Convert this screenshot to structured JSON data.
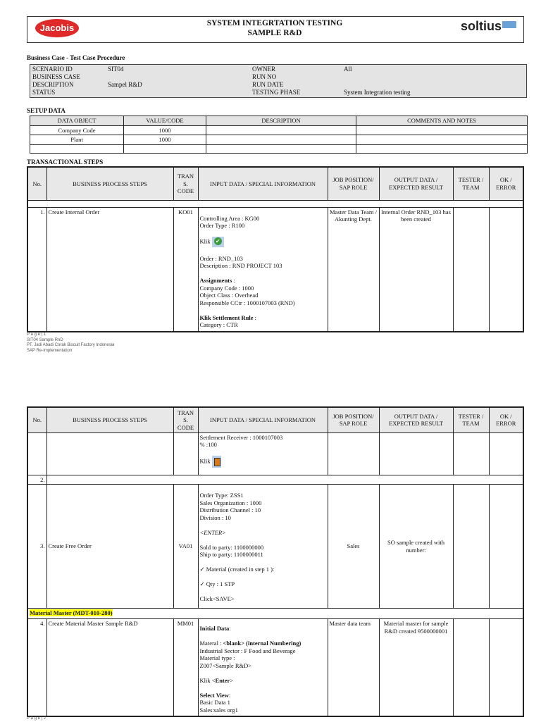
{
  "header": {
    "logo_left": "Jacobis",
    "title_line1": "SYSTEM INTEGRTATION TESTING",
    "title_line2": "SAMPLE R&D",
    "logo_right": "soltius"
  },
  "business_case": {
    "heading": "Business Case - Test Case Procedure",
    "scenario_id_label": "SCENARIO ID",
    "scenario_id": "SIT04",
    "business_case_label": "BUSINESS CASE",
    "business_case": "",
    "description_label": "DESCRIPTION",
    "description": "Sampel R&D",
    "status_label": "STATUS",
    "status": "",
    "owner_label": "OWNER",
    "owner": "All",
    "run_no_label": "RUN NO",
    "run_no": "",
    "run_date_label": "RUN DATE",
    "run_date": "",
    "testing_phase_label": "TESTING PHASE",
    "testing_phase": "System Integration testing"
  },
  "setup": {
    "heading": "SETUP DATA",
    "columns": [
      "DATA OBJECT",
      "VALUE/CODE",
      "DESCRIPTION",
      "COMMENTS AND NOTES"
    ],
    "rows": [
      [
        "Company Code",
        "1000",
        "",
        ""
      ],
      [
        "Plant",
        "1000",
        "",
        ""
      ],
      [
        "",
        "",
        "",
        ""
      ]
    ]
  },
  "steps": {
    "heading": "TRANSACTIONAL STEPS",
    "columns": [
      "No.",
      "BUSINESS PROCESS STEPS",
      "TRAN S. CODE",
      "INPUT DATA / SPECIAL INFORMATION",
      "JOB POSITION/ SAP ROLE",
      "OUTPUT DATA / EXPECTED RESULT",
      "TESTER / TEAM",
      "OK / ERROR"
    ],
    "step1": {
      "no": "1.",
      "name": "Create Internal Order",
      "code": "KO01",
      "job": "Master Data Team / Akunting Dept.",
      "output": "Internal Order RND_103 has been created",
      "input": {
        "l1": "Controlling Area : KG00",
        "l2": "Order Type : R100",
        "klik": "Klik",
        "l3": "Order : RND_103",
        "l4": "Description : RND PROJECT 103",
        "assign": "Assignments",
        "assign_colon": " :",
        "l5": "Company Code : 1000",
        "l6": "Object Class : Overhead",
        "l7": "Responsible CCtr : 1000107003 (RND)",
        "settle": "Klik Settlement Rule",
        "settle_colon": " :",
        "l8": "Category : CTR"
      }
    },
    "step1_cont": {
      "l1": "Settlement Receiver : 1000107003",
      "l2": "% :100",
      "klik": "Klik"
    },
    "step2": {
      "no": "2."
    },
    "step3": {
      "no": "3.",
      "name": "Create Free Order",
      "code": "VA01",
      "job": "Sales",
      "output": "SO sample created with number:",
      "input": {
        "l1": "Order Type: ZSS1",
        "l2": "Sales Organization : 1000",
        "l3": "Distribution Channel : 10",
        "l4": "Division : 10",
        "l5": "<ENTER>",
        "l6": "Sold to party: 1100000000",
        "l7": "Ship to party: 1100000011",
        "l8": "Material (created in step 1 ):",
        "l9": "Qty : 1 STP",
        "l10": "Click<SAVE>"
      }
    },
    "section": "Material Master (MDT-010-280)",
    "step4": {
      "no": "4.",
      "name": "Create Material Master Sample R&D",
      "code": "MM01",
      "job": "Master data team",
      "output": "Material master for sample R&D created 9500000001",
      "input": {
        "initial": "Initial Data",
        "initial_colon": ":",
        "mat_a": "Materal : ",
        "mat_b": "<blank> (internal Numbering)",
        "l2": "Industrial Sector : F Food and Beverage",
        "l3": "Material type :",
        "l4": "Z007<Sample R&D>",
        "klik_a": "Klik <",
        "klik_b": "Enter",
        "klik_c": ">",
        "view": "Select View",
        "view_colon": ":",
        "l5": "Basic Data 1",
        "l6": "Sales:sales org1"
      }
    }
  },
  "footer1": {
    "page": "P a g e | 1",
    "l1": "SIT04 Sample RnD",
    "l2": "PT. Jadi Abadi Corak Biscuit Factory Indonesia",
    "l3": "SAP Re-Implementation"
  },
  "footer2": {
    "page": "P a g e | 2"
  }
}
